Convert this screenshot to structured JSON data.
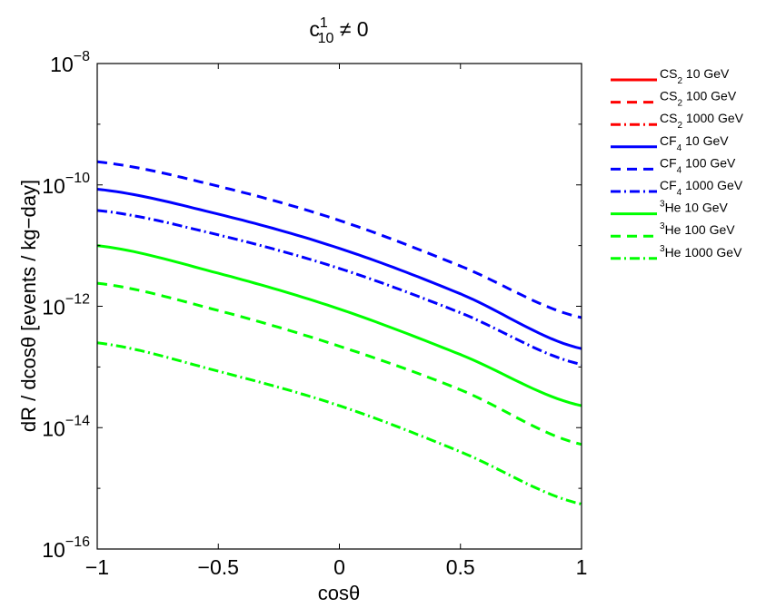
{
  "chart_data": {
    "type": "line",
    "title": {
      "base": "c",
      "sup": "1",
      "sub": "10",
      "rest": " ≠ 0"
    },
    "xlabel": "cosθ",
    "ylabel": "dR / dcosθ  [events / kg−day]",
    "xlim": [
      -1,
      1
    ],
    "ylim": [
      1e-16,
      1e-08
    ],
    "yscale": "log",
    "grid": false,
    "legend_position": "outside-right",
    "x_ticks": [
      {
        "value": -1,
        "label": "−1"
      },
      {
        "value": -0.5,
        "label": "−0.5"
      },
      {
        "value": 0,
        "label": "0"
      },
      {
        "value": 0.5,
        "label": "0.5"
      },
      {
        "value": 1,
        "label": "1"
      }
    ],
    "y_ticks": [
      {
        "value": 1e-16,
        "mantissa": "10",
        "exp": "−16"
      },
      {
        "value": 1e-14,
        "mantissa": "10",
        "exp": "−14"
      },
      {
        "value": 1e-12,
        "mantissa": "10",
        "exp": "−12"
      },
      {
        "value": 1e-10,
        "mantissa": "10",
        "exp": "−10"
      },
      {
        "value": 1e-08,
        "mantissa": "10",
        "exp": "−8"
      }
    ],
    "x": [
      -1,
      -0.5,
      0,
      0.5,
      1
    ],
    "series": [
      {
        "legend": {
          "pre": "",
          "base": "CS",
          "sub": "2",
          "post": " 10 GeV"
        },
        "color": "#ff0000",
        "style": "solid",
        "values": null
      },
      {
        "legend": {
          "pre": "",
          "base": "CS",
          "sub": "2",
          "post": " 100 GeV"
        },
        "color": "#ff0000",
        "style": "dashed",
        "values": null
      },
      {
        "legend": {
          "pre": "",
          "base": "CS",
          "sub": "2",
          "post": " 1000 GeV"
        },
        "color": "#ff0000",
        "style": "dashdot",
        "values": null
      },
      {
        "legend": {
          "pre": "",
          "base": "CF",
          "sub": "4",
          "post": " 10 GeV"
        },
        "color": "#0000ff",
        "style": "solid",
        "values": [
          8.5e-11,
          3.3e-11,
          9e-12,
          1.6e-12,
          2e-13
        ]
      },
      {
        "legend": {
          "pre": "",
          "base": "CF",
          "sub": "4",
          "post": " 100 GeV"
        },
        "color": "#0000ff",
        "style": "dashed",
        "values": [
          2.4e-10,
          9.5e-11,
          2.6e-11,
          4.6e-12,
          6.5e-13
        ]
      },
      {
        "legend": {
          "pre": "",
          "base": "CF",
          "sub": "4",
          "post": " 1000 GeV"
        },
        "color": "#0000ff",
        "style": "dashdot",
        "values": [
          3.8e-11,
          1.5e-11,
          4.2e-12,
          7.8e-13,
          1.1e-13
        ]
      },
      {
        "legend": {
          "pre": "3",
          "base": "He",
          "sub": "",
          "post": " 10 GeV"
        },
        "color": "#00ff00",
        "style": "solid",
        "values": [
          1e-11,
          3.5e-12,
          9e-13,
          1.6e-13,
          2.3e-14
        ]
      },
      {
        "legend": {
          "pre": "3",
          "base": "He",
          "sub": "",
          "post": " 100 GeV"
        },
        "color": "#00ff00",
        "style": "dashed",
        "values": [
          2.4e-12,
          8.5e-13,
          2.2e-13,
          4.2e-14,
          5.3e-15
        ]
      },
      {
        "legend": {
          "pre": "3",
          "base": "He",
          "sub": "",
          "post": " 1000 GeV"
        },
        "color": "#00ff00",
        "style": "dashdot",
        "values": [
          2.5e-13,
          8.5e-14,
          2.3e-14,
          4e-15,
          5.5e-16
        ]
      }
    ]
  }
}
